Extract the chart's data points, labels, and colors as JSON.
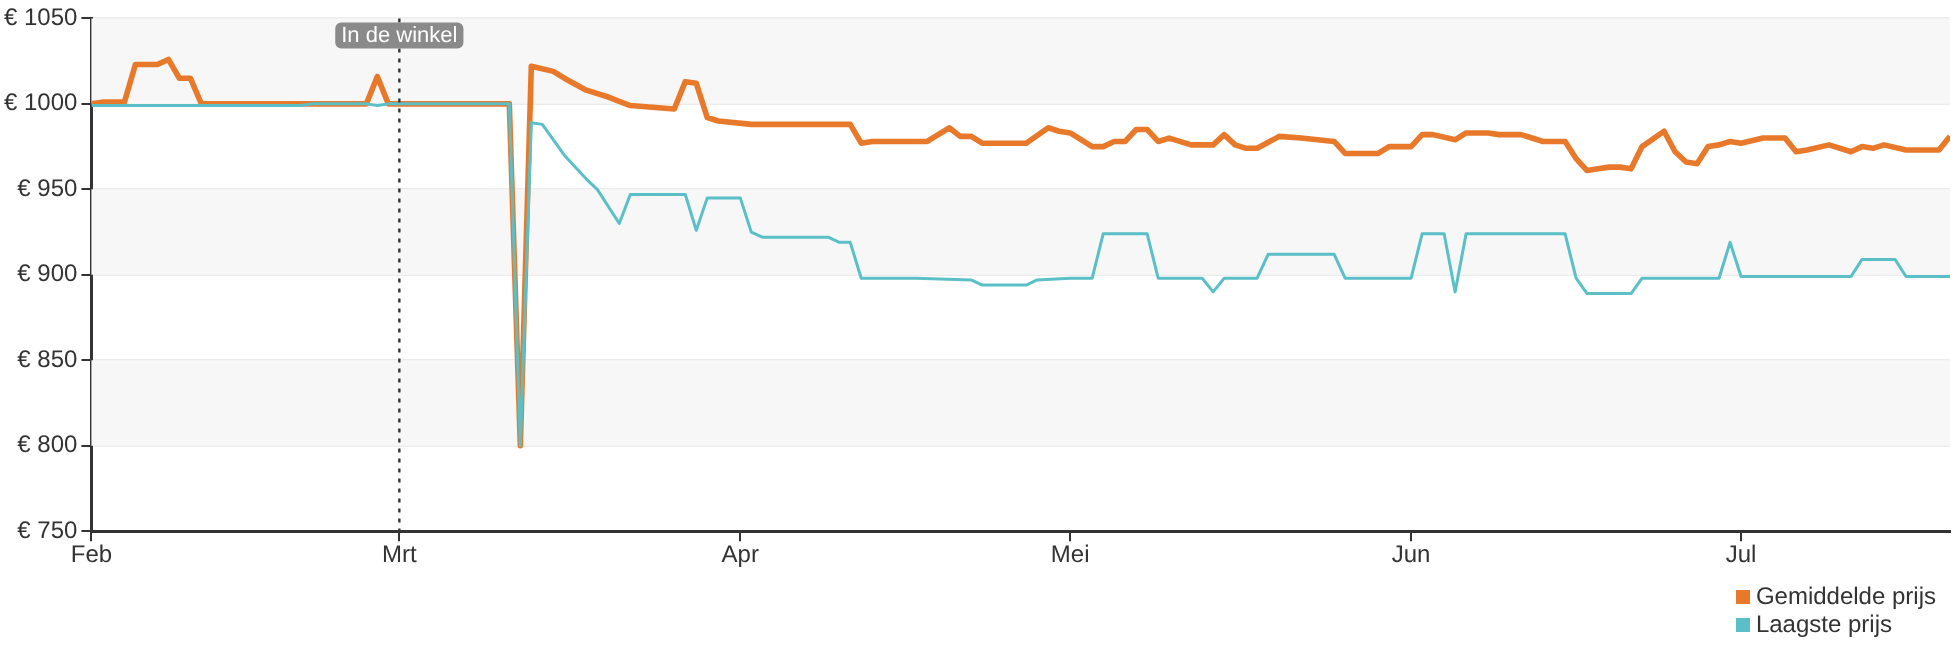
{
  "chart_data": {
    "type": "line",
    "xlim": [
      "--02-01",
      "--07-20"
    ],
    "xticks": [
      {
        "value": "--02-01",
        "label": "Feb"
      },
      {
        "value": "--03-01",
        "label": "Mrt"
      },
      {
        "value": "--04-01",
        "label": "Apr"
      },
      {
        "value": "--05-01",
        "label": "Mei"
      },
      {
        "value": "--06-01",
        "label": "Jun"
      },
      {
        "value": "--07-01",
        "label": "Jul"
      }
    ],
    "ylim": [
      750,
      1050
    ],
    "yticks": [
      {
        "value": 750,
        "label": "€ 750"
      },
      {
        "value": 800,
        "label": "€ 800"
      },
      {
        "value": 850,
        "label": "€ 850"
      },
      {
        "value": 900,
        "label": "€ 900"
      },
      {
        "value": 950,
        "label": "€ 950"
      },
      {
        "value": 1000,
        "label": "€ 1000"
      },
      {
        "value": 1050,
        "label": "€ 1050"
      }
    ],
    "grid": "y",
    "legend": "bottom right",
    "marker": "none",
    "line_style": "solid",
    "ref_lines": [
      {
        "axis": "x",
        "value": "--03-01",
        "label": "In de winkel",
        "color": "#333333",
        "line_style": "dotted"
      }
    ],
    "series": [
      {
        "name": "Gemiddelde prijs",
        "color": "#e8792b",
        "x": [
          "--02-01",
          "--02-02",
          "--02-04",
          "--02-05",
          "--02-07",
          "--02-08",
          "--02-09",
          "--02-10",
          "--02-11",
          "--02-26",
          "--02-27",
          "--02-28",
          "--03-11",
          "--03-12",
          "--03-13",
          "--03-15",
          "--03-16",
          "--03-18",
          "--03-20",
          "--03-22",
          "--03-26",
          "--03-27",
          "--03-28",
          "--03-29",
          "--03-30",
          "--04-02",
          "--04-11",
          "--04-12",
          "--04-13",
          "--04-18",
          "--04-20",
          "--04-21",
          "--04-22",
          "--04-23",
          "--04-27",
          "--04-29",
          "--04-30",
          "--05-01",
          "--05-03",
          "--05-04",
          "--05-05",
          "--05-06",
          "--05-07",
          "--05-08",
          "--05-09",
          "--05-10",
          "--05-12",
          "--05-14",
          "--05-15",
          "--05-16",
          "--05-17",
          "--05-18",
          "--05-20",
          "--05-22",
          "--05-25",
          "--05-26",
          "--05-29",
          "--05-30",
          "--06-01",
          "--06-02",
          "--06-03",
          "--06-05",
          "--06-06",
          "--06-08",
          "--06-09",
          "--06-11",
          "--06-13",
          "--06-15",
          "--06-16",
          "--06-17",
          "--06-18",
          "--06-19",
          "--06-20",
          "--06-21",
          "--06-22",
          "--06-24",
          "--06-25",
          "--06-26",
          "--06-27",
          "--06-28",
          "--06-29",
          "--06-30",
          "--07-01",
          "--07-03",
          "--07-05",
          "--07-06",
          "--07-07",
          "--07-09",
          "--07-11",
          "--07-12",
          "--07-13",
          "--07-14",
          "--07-16",
          "--07-19",
          "--07-20"
        ],
        "values": [
          1000,
          1001,
          1001,
          1023,
          1023,
          1026,
          1015,
          1015,
          1000,
          1000,
          1016,
          1000,
          1000,
          800,
          1022,
          1019,
          1015,
          1008,
          1004,
          999,
          997,
          1013,
          1012,
          992,
          990,
          988,
          988,
          977,
          978,
          978,
          986,
          981,
          981,
          977,
          977,
          986,
          984,
          983,
          975,
          975,
          978,
          978,
          985,
          985,
          978,
          980,
          976,
          976,
          982,
          976,
          974,
          974,
          981,
          980,
          978,
          971,
          971,
          975,
          975,
          982,
          982,
          979,
          983,
          983,
          982,
          982,
          978,
          978,
          968,
          961,
          962,
          963,
          963,
          962,
          975,
          984,
          972,
          966,
          965,
          975,
          976,
          978,
          977,
          980,
          980,
          972,
          973,
          976,
          972,
          975,
          974,
          976,
          973,
          973,
          981
        ]
      },
      {
        "name": "Laagste prijs",
        "color": "#5bbfc8",
        "x": [
          "--02-01",
          "--02-20",
          "--02-21",
          "--02-26",
          "--02-27",
          "--02-28",
          "--03-11",
          "--03-12",
          "--03-13",
          "--03-14",
          "--03-16",
          "--03-18",
          "--03-19",
          "--03-21",
          "--03-22",
          "--03-27",
          "--03-28",
          "--03-29",
          "--04-01",
          "--04-02",
          "--04-03",
          "--04-09",
          "--04-10",
          "--04-11",
          "--04-12",
          "--04-17",
          "--04-22",
          "--04-23",
          "--04-27",
          "--04-28",
          "--05-01",
          "--05-03",
          "--05-04",
          "--05-08",
          "--05-09",
          "--05-13",
          "--05-14",
          "--05-15",
          "--05-18",
          "--05-19",
          "--05-25",
          "--05-26",
          "--06-01",
          "--06-02",
          "--06-04",
          "--06-05",
          "--06-06",
          "--06-15",
          "--06-16",
          "--06-17",
          "--06-21",
          "--06-22",
          "--06-29",
          "--06-30",
          "--07-01",
          "--07-11",
          "--07-12",
          "--07-15",
          "--07-16",
          "--07-20"
        ],
        "values": [
          999,
          999,
          1000,
          1000,
          999,
          1000,
          1000,
          800,
          989,
          988,
          970,
          956,
          950,
          930,
          947,
          947,
          926,
          945,
          945,
          925,
          922,
          922,
          919,
          919,
          898,
          898,
          897,
          894,
          894,
          897,
          898,
          898,
          924,
          924,
          898,
          898,
          890,
          898,
          898,
          912,
          912,
          898,
          898,
          924,
          924,
          890,
          924,
          924,
          898,
          889,
          889,
          898,
          898,
          919,
          899,
          899,
          909,
          909,
          899,
          899
        ]
      }
    ]
  }
}
